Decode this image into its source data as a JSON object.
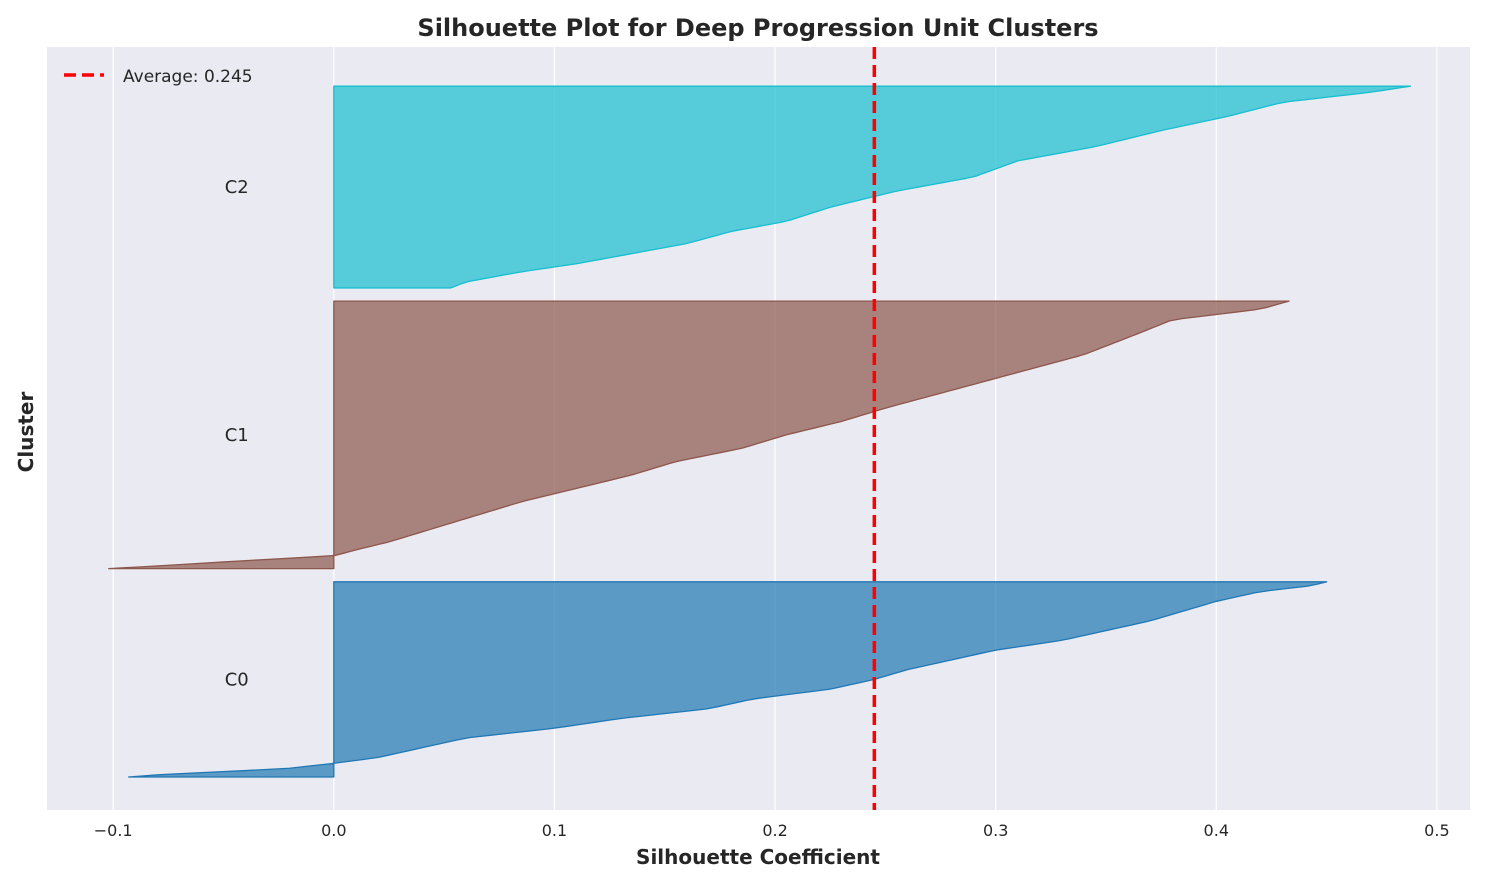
{
  "chart_data": {
    "type": "area",
    "title": "Silhouette Plot for Deep Progression Unit Clusters",
    "xlabel": "Silhouette Coefficient",
    "ylabel": "Cluster",
    "xlim": [
      -0.13,
      0.515
    ],
    "xticks": [
      -0.1,
      0.0,
      0.1,
      0.2,
      0.3,
      0.4,
      0.5
    ],
    "xtick_labels": [
      "−0.1",
      "0.0",
      "0.1",
      "0.2",
      "0.3",
      "0.4",
      "0.5"
    ],
    "grid": true,
    "legend_position": "top-left",
    "average_line": {
      "value": 0.245,
      "label": "Average: 0.245",
      "color": "#ff0000"
    },
    "series": [
      {
        "name": "C0",
        "color": "#1f77b4",
        "sample_start": 0,
        "sample_count": 90,
        "profile": [
          [
            0.0,
            0.45
          ],
          [
            0.02,
            0.443
          ],
          [
            0.05,
            0.42
          ],
          [
            0.1,
            0.4
          ],
          [
            0.15,
            0.385
          ],
          [
            0.2,
            0.37
          ],
          [
            0.25,
            0.35
          ],
          [
            0.3,
            0.33
          ],
          [
            0.35,
            0.3
          ],
          [
            0.4,
            0.28
          ],
          [
            0.45,
            0.26
          ],
          [
            0.5,
            0.245
          ],
          [
            0.55,
            0.225
          ],
          [
            0.6,
            0.19
          ],
          [
            0.65,
            0.17
          ],
          [
            0.7,
            0.13
          ],
          [
            0.75,
            0.1
          ],
          [
            0.8,
            0.06
          ],
          [
            0.85,
            0.04
          ],
          [
            0.9,
            0.02
          ],
          [
            0.93,
            0.0
          ],
          [
            0.955,
            -0.02
          ],
          [
            0.97,
            -0.045
          ],
          [
            0.985,
            -0.075
          ],
          [
            1.0,
            -0.093
          ]
        ]
      },
      {
        "name": "C1",
        "color": "#8c564b",
        "sample_start": 95,
        "sample_count": 123,
        "profile": [
          [
            0.0,
            0.433
          ],
          [
            0.03,
            0.42
          ],
          [
            0.07,
            0.38
          ],
          [
            0.12,
            0.365
          ],
          [
            0.2,
            0.34
          ],
          [
            0.3,
            0.295
          ],
          [
            0.4,
            0.25
          ],
          [
            0.45,
            0.23
          ],
          [
            0.5,
            0.205
          ],
          [
            0.55,
            0.185
          ],
          [
            0.6,
            0.155
          ],
          [
            0.65,
            0.135
          ],
          [
            0.7,
            0.11
          ],
          [
            0.75,
            0.085
          ],
          [
            0.8,
            0.065
          ],
          [
            0.85,
            0.045
          ],
          [
            0.9,
            0.025
          ],
          [
            0.93,
            0.01
          ],
          [
            0.952,
            0.0
          ],
          [
            0.97,
            -0.04
          ],
          [
            0.985,
            -0.07
          ],
          [
            1.0,
            -0.102
          ]
        ]
      },
      {
        "name": "C2",
        "color": "#17becf",
        "sample_start": 223,
        "sample_count": 93,
        "profile": [
          [
            0.0,
            0.488
          ],
          [
            0.03,
            0.47
          ],
          [
            0.08,
            0.43
          ],
          [
            0.15,
            0.405
          ],
          [
            0.22,
            0.375
          ],
          [
            0.3,
            0.345
          ],
          [
            0.37,
            0.31
          ],
          [
            0.45,
            0.29
          ],
          [
            0.52,
            0.255
          ],
          [
            0.6,
            0.225
          ],
          [
            0.67,
            0.205
          ],
          [
            0.72,
            0.18
          ],
          [
            0.78,
            0.16
          ],
          [
            0.83,
            0.135
          ],
          [
            0.88,
            0.11
          ],
          [
            0.92,
            0.085
          ],
          [
            0.95,
            0.07
          ],
          [
            0.97,
            0.06
          ],
          [
            1.0,
            0.053
          ]
        ]
      }
    ]
  }
}
